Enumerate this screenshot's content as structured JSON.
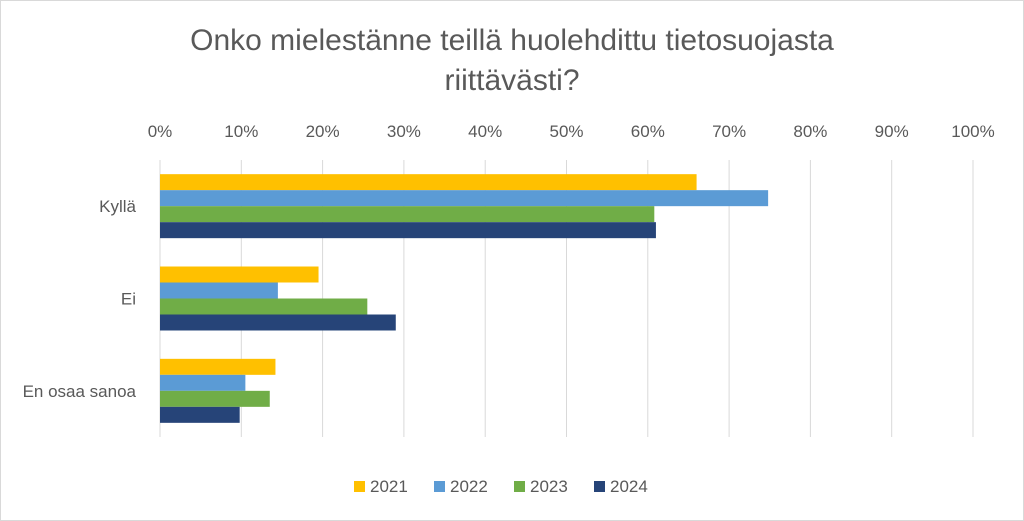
{
  "chart_data": {
    "type": "bar",
    "orientation": "horizontal",
    "title_lines": [
      "Onko mielestänne teillä huolehdittu tietosuojasta",
      "riittävästi?"
    ],
    "categories": [
      "Kyllä",
      "Ei",
      "En osaa sanoa"
    ],
    "series": [
      {
        "name": "2021",
        "color": "#FFC000",
        "values": [
          66,
          19.5,
          14.2
        ]
      },
      {
        "name": "2022",
        "color": "#5B9BD5",
        "values": [
          74.8,
          14.5,
          10.5
        ]
      },
      {
        "name": "2023",
        "color": "#70AD47",
        "values": [
          60.8,
          25.5,
          13.5
        ]
      },
      {
        "name": "2024",
        "color": "#264478",
        "values": [
          61,
          29,
          9.8
        ]
      }
    ],
    "xlim": [
      0,
      100
    ],
    "x_ticks": [
      "0%",
      "10%",
      "20%",
      "30%",
      "40%",
      "50%",
      "60%",
      "70%",
      "80%",
      "90%",
      "100%"
    ],
    "x_axis_position": "top",
    "grid": true,
    "legend_position": "bottom"
  }
}
